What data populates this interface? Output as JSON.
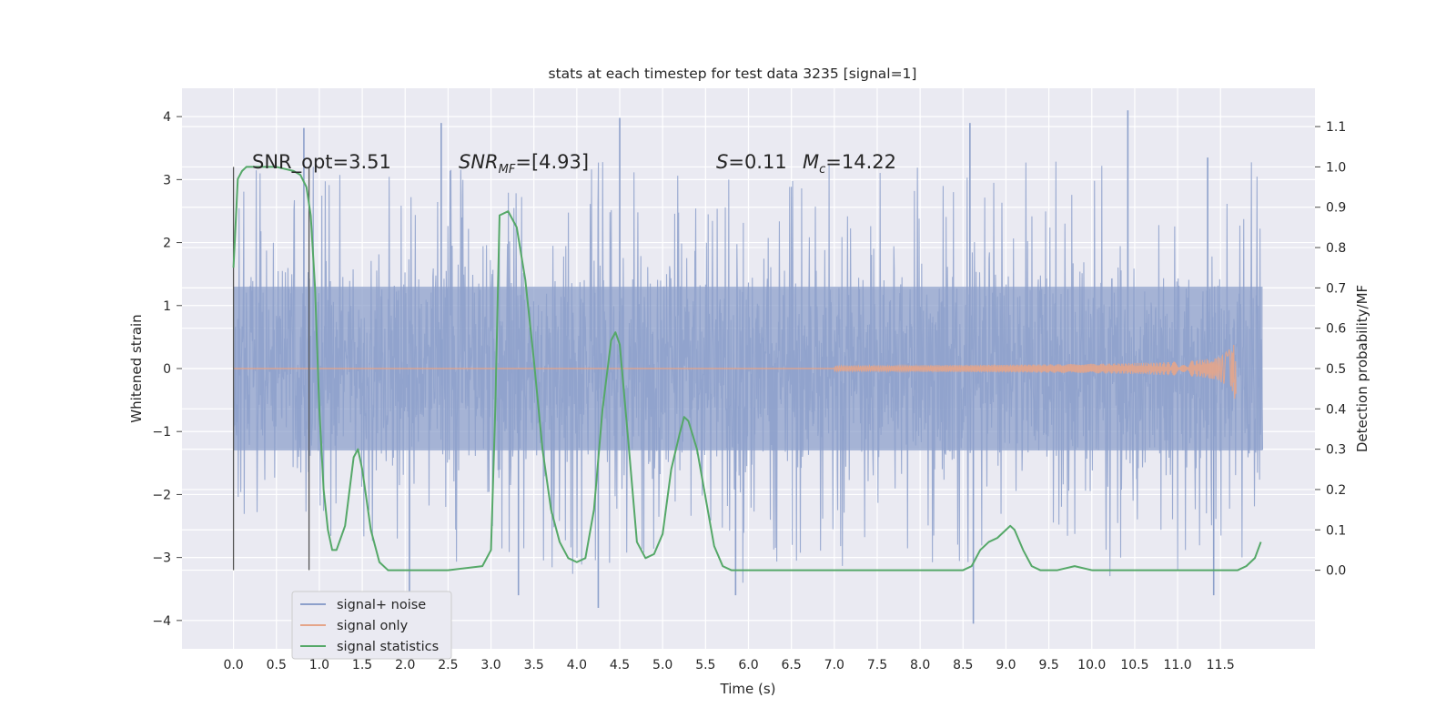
{
  "chart_data": {
    "type": "line",
    "title": "stats at each timestep for test data 3235 [signal=1]",
    "xlabel": "Time (s)",
    "ylabel": "Whitened strain",
    "y2label": "Detection probability/MF",
    "xlim": [
      -0.6,
      12.6
    ],
    "ylim": [
      -4.45,
      4.45
    ],
    "y2lim": [
      -0.195,
      1.195
    ],
    "x_ticks": [
      0.0,
      0.5,
      1.0,
      1.5,
      2.0,
      2.5,
      3.0,
      3.5,
      4.0,
      4.5,
      5.0,
      5.5,
      6.0,
      6.5,
      7.0,
      7.5,
      8.0,
      8.5,
      9.0,
      9.5,
      10.0,
      10.5,
      11.0,
      11.5
    ],
    "x_tick_labels": [
      "0.0",
      "0.5",
      "1.0",
      "1.5",
      "2.0",
      "2.5",
      "3.0",
      "3.5",
      "4.0",
      "4.5",
      "5.0",
      "5.5",
      "6.0",
      "6.5",
      "7.0",
      "7.5",
      "8.0",
      "8.5",
      "9.0",
      "9.5",
      "10.0",
      "10.5",
      "11.0",
      "11.5"
    ],
    "y_ticks": [
      -4,
      -3,
      -2,
      -1,
      0,
      1,
      2,
      3,
      4
    ],
    "y_tick_labels": [
      "−4",
      "−3",
      "−2",
      "−1",
      "0",
      "1",
      "2",
      "3",
      "4"
    ],
    "y2_ticks": [
      0.0,
      0.1,
      0.2,
      0.3,
      0.4,
      0.5,
      0.6,
      0.7,
      0.8,
      0.9,
      1.0,
      1.1
    ],
    "y2_tick_labels": [
      "0.0",
      "0.1",
      "0.2",
      "0.3",
      "0.4",
      "0.5",
      "0.6",
      "0.7",
      "0.8",
      "0.9",
      "1.0",
      "1.1"
    ],
    "grid": true,
    "legend_position": "lower-left",
    "annotations": {
      "snr_opt": "SNR_opt=3.51",
      "snr_mf_main": "SNR",
      "snr_mf_sub": "MF",
      "snr_mf_rest": "=[4.93]",
      "s_main": "S",
      "s_rest": "=0.11",
      "mc_main": "M",
      "mc_sub": "c",
      "mc_rest": "=14.22"
    },
    "vertical_markers": [
      0.0,
      0.88
    ],
    "series": [
      {
        "name": "signal+ noise",
        "color": "#8da0cb",
        "duration_s": 11.99,
        "typical_range": [
          -1.3,
          1.3
        ],
        "peaks_top": [
          [
            0.82,
            3.82
          ],
          [
            2.42,
            3.9
          ],
          [
            4.5,
            3.98
          ],
          [
            8.58,
            3.9
          ],
          [
            10.42,
            4.1
          ],
          [
            11.35,
            3.35
          ]
        ],
        "peaks_bottom": [
          [
            4.25,
            -3.8
          ],
          [
            8.62,
            -4.05
          ],
          [
            2.05,
            -3.6
          ],
          [
            3.32,
            -3.6
          ],
          [
            5.85,
            -3.6
          ],
          [
            11.42,
            -3.6
          ]
        ]
      },
      {
        "name": "signal only",
        "color": "#e5a589",
        "start_s": 7.0,
        "end_s": 11.68,
        "peak_amplitude": 0.62
      },
      {
        "name": "signal statistics",
        "color": "#55a868",
        "x": [
          0.0,
          0.05,
          0.1,
          0.15,
          0.2,
          0.3,
          0.5,
          0.7,
          0.78,
          0.85,
          0.9,
          0.95,
          1.0,
          1.05,
          1.1,
          1.15,
          1.2,
          1.3,
          1.4,
          1.45,
          1.5,
          1.6,
          1.7,
          1.8,
          2.0,
          2.5,
          2.9,
          3.0,
          3.05,
          3.1,
          3.2,
          3.3,
          3.4,
          3.5,
          3.6,
          3.7,
          3.8,
          3.9,
          4.0,
          4.1,
          4.2,
          4.3,
          4.4,
          4.45,
          4.5,
          4.6,
          4.7,
          4.8,
          4.9,
          5.0,
          5.1,
          5.2,
          5.25,
          5.3,
          5.4,
          5.5,
          5.6,
          5.7,
          5.8,
          6.0,
          7.0,
          8.0,
          8.5,
          8.6,
          8.7,
          8.8,
          8.9,
          9.0,
          9.05,
          9.1,
          9.2,
          9.3,
          9.4,
          9.5,
          9.6,
          9.8,
          10.0,
          11.0,
          11.5,
          11.7,
          11.8,
          11.9,
          11.97
        ],
        "values": [
          0.75,
          0.97,
          0.99,
          1.0,
          1.0,
          1.0,
          1.0,
          0.99,
          0.98,
          0.95,
          0.88,
          0.7,
          0.4,
          0.2,
          0.1,
          0.05,
          0.05,
          0.11,
          0.28,
          0.3,
          0.25,
          0.1,
          0.02,
          0.0,
          0.0,
          0.0,
          0.01,
          0.05,
          0.4,
          0.88,
          0.89,
          0.85,
          0.72,
          0.52,
          0.3,
          0.15,
          0.07,
          0.03,
          0.02,
          0.03,
          0.15,
          0.4,
          0.57,
          0.59,
          0.56,
          0.32,
          0.07,
          0.03,
          0.04,
          0.09,
          0.25,
          0.34,
          0.38,
          0.37,
          0.3,
          0.18,
          0.06,
          0.01,
          0.0,
          0.0,
          0.0,
          0.0,
          0.0,
          0.01,
          0.05,
          0.07,
          0.08,
          0.1,
          0.11,
          0.1,
          0.05,
          0.01,
          0.0,
          0.0,
          0.0,
          0.01,
          0.0,
          0.0,
          0.0,
          0.0,
          0.01,
          0.03,
          0.07
        ]
      }
    ]
  }
}
